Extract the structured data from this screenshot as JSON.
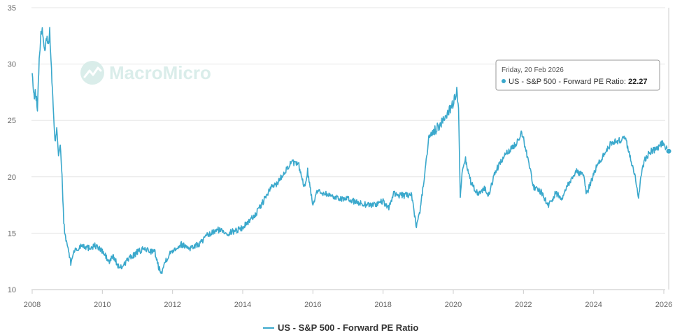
{
  "chart_data": {
    "type": "line",
    "title": "",
    "xlabel": "",
    "ylabel": "",
    "ylim": [
      10,
      35
    ],
    "xlim": [
      2008.0,
      2026.2
    ],
    "yticks": [
      "10",
      "15",
      "20",
      "25",
      "30",
      "35"
    ],
    "xticks": [
      "2008",
      "2010",
      "2012",
      "2014",
      "2016",
      "2018",
      "2020",
      "2022",
      "2024",
      "2026"
    ],
    "grid": true,
    "legend_position": "bottom-center",
    "series": [
      {
        "name": "US - S&P 500 - Forward PE Ratio",
        "color": "#3aa8cc",
        "x": [
          2008.0,
          2008.05,
          2008.1,
          2008.15,
          2008.2,
          2008.25,
          2008.3,
          2008.35,
          2008.4,
          2008.45,
          2008.5,
          2008.55,
          2008.6,
          2008.65,
          2008.7,
          2008.75,
          2008.8,
          2008.85,
          2008.9,
          2008.95,
          2009.0,
          2009.05,
          2009.1,
          2009.15,
          2009.2,
          2009.3,
          2009.4,
          2009.6,
          2009.8,
          2010.0,
          2010.2,
          2010.3,
          2010.5,
          2010.7,
          2011.0,
          2011.2,
          2011.5,
          2011.6,
          2011.7,
          2011.8,
          2012.0,
          2012.25,
          2012.5,
          2012.75,
          2013.0,
          2013.3,
          2013.6,
          2014.0,
          2014.4,
          2014.8,
          2015.0,
          2015.2,
          2015.4,
          2015.6,
          2015.75,
          2015.85,
          2016.0,
          2016.1,
          2016.3,
          2016.6,
          2017.0,
          2017.4,
          2017.7,
          2018.0,
          2018.15,
          2018.3,
          2018.6,
          2018.8,
          2018.95,
          2019.05,
          2019.2,
          2019.3,
          2019.45,
          2019.6,
          2019.8,
          2020.0,
          2020.1,
          2020.15,
          2020.2,
          2020.25,
          2020.35,
          2020.5,
          2020.7,
          2020.9,
          2021.0,
          2021.2,
          2021.5,
          2021.8,
          2021.95,
          2022.1,
          2022.3,
          2022.5,
          2022.7,
          2022.8,
          2022.9,
          2023.1,
          2023.3,
          2023.5,
          2023.7,
          2023.8,
          2023.95,
          2024.1,
          2024.3,
          2024.5,
          2024.7,
          2024.9,
          2025.0,
          2025.1,
          2025.2,
          2025.28,
          2025.35,
          2025.45,
          2025.6,
          2025.8,
          2025.95,
          2026.05,
          2026.14
        ],
        "values": [
          29.2,
          27.0,
          27.5,
          26.0,
          30.5,
          32.5,
          33.0,
          31.0,
          32.5,
          31.8,
          32.8,
          29.5,
          26.0,
          23.0,
          24.5,
          22.0,
          22.8,
          20.0,
          16.0,
          14.5,
          14.0,
          13.2,
          12.3,
          13.0,
          13.5,
          13.5,
          14.0,
          13.7,
          13.9,
          13.4,
          12.4,
          13.0,
          11.8,
          12.6,
          13.3,
          13.6,
          13.3,
          12.0,
          11.6,
          12.6,
          13.5,
          14.0,
          13.7,
          14.0,
          14.8,
          15.3,
          15.0,
          15.5,
          16.8,
          19.0,
          19.5,
          20.5,
          21.3,
          21.0,
          19.0,
          20.5,
          17.5,
          18.7,
          18.6,
          18.2,
          18.0,
          17.6,
          17.5,
          17.8,
          17.2,
          18.5,
          18.3,
          18.5,
          15.5,
          17.0,
          20.5,
          23.5,
          24.0,
          24.5,
          25.5,
          26.5,
          27.6,
          26.0,
          18.0,
          20.3,
          21.5,
          19.5,
          18.5,
          19.0,
          18.2,
          20.5,
          22.0,
          23.0,
          24.0,
          22.0,
          19.0,
          18.7,
          17.5,
          17.8,
          18.5,
          18.2,
          19.5,
          20.5,
          20.2,
          18.5,
          19.8,
          21.0,
          22.0,
          23.0,
          23.2,
          23.4,
          22.3,
          21.0,
          19.8,
          18.0,
          20.0,
          21.5,
          22.2,
          22.5,
          23.0,
          22.6,
          22.27
        ]
      }
    ],
    "tooltip": {
      "date": "Friday, 20 Feb 2026",
      "series_name": "US - S&P 500 - Forward PE Ratio",
      "separator": ": ",
      "value": "22.27"
    }
  },
  "watermark": {
    "text": "MacroMicro"
  }
}
